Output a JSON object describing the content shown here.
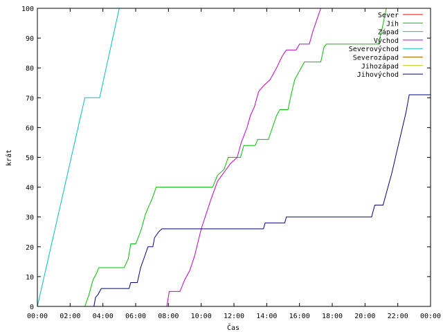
{
  "chart_data": {
    "type": "line",
    "title": "",
    "xlabel": "Čas",
    "ylabel": "krát",
    "xlim": [
      0,
      24
    ],
    "ylim": [
      0,
      100
    ],
    "x_ticks": [
      {
        "v": 0,
        "label": "00:00"
      },
      {
        "v": 2,
        "label": "02:00"
      },
      {
        "v": 4,
        "label": "04:00"
      },
      {
        "v": 6,
        "label": "06:00"
      },
      {
        "v": 8,
        "label": "08:00"
      },
      {
        "v": 10,
        "label": "10:00"
      },
      {
        "v": 12,
        "label": "12:00"
      },
      {
        "v": 14,
        "label": "14:00"
      },
      {
        "v": 16,
        "label": "16:00"
      },
      {
        "v": 18,
        "label": "18:00"
      },
      {
        "v": 20,
        "label": "20:00"
      },
      {
        "v": 22,
        "label": "22:00"
      },
      {
        "v": 24,
        "label": "00:00"
      }
    ],
    "y_ticks": [
      {
        "v": 0,
        "label": "0"
      },
      {
        "v": 10,
        "label": "10"
      },
      {
        "v": 20,
        "label": "20"
      },
      {
        "v": 30,
        "label": "30"
      },
      {
        "v": 40,
        "label": "40"
      },
      {
        "v": 50,
        "label": "50"
      },
      {
        "v": 60,
        "label": "60"
      },
      {
        "v": 70,
        "label": "70"
      },
      {
        "v": 80,
        "label": "80"
      },
      {
        "v": 90,
        "label": "90"
      },
      {
        "v": 100,
        "label": "100"
      }
    ],
    "grid": false,
    "legend_position": "top-right",
    "series": [
      {
        "name": "Sever",
        "color": "#ff0000",
        "points": []
      },
      {
        "name": "Jih",
        "color": "#00c000",
        "points": [
          [
            2.9,
            0
          ],
          [
            3.15,
            4
          ],
          [
            3.4,
            9
          ],
          [
            3.6,
            11
          ],
          [
            3.75,
            13
          ],
          [
            5.3,
            13
          ],
          [
            5.55,
            16
          ],
          [
            5.7,
            21
          ],
          [
            6.0,
            21
          ],
          [
            6.15,
            23
          ],
          [
            6.35,
            26
          ],
          [
            6.6,
            31
          ],
          [
            6.75,
            33
          ],
          [
            7.0,
            36
          ],
          [
            7.25,
            40
          ],
          [
            10.7,
            40
          ],
          [
            11.0,
            44
          ],
          [
            11.4,
            46
          ],
          [
            11.65,
            50
          ],
          [
            12.4,
            50
          ],
          [
            12.6,
            54
          ],
          [
            13.3,
            54
          ],
          [
            13.45,
            56
          ],
          [
            14.1,
            56
          ],
          [
            14.35,
            60
          ],
          [
            14.6,
            64
          ],
          [
            14.8,
            66
          ],
          [
            15.3,
            66
          ],
          [
            15.45,
            70
          ],
          [
            15.7,
            76
          ],
          [
            16.0,
            79
          ],
          [
            16.3,
            82
          ],
          [
            17.3,
            82
          ],
          [
            17.5,
            87
          ],
          [
            17.65,
            88
          ],
          [
            20.8,
            88
          ],
          [
            21.0,
            92
          ],
          [
            21.3,
            100
          ]
        ]
      },
      {
        "name": "Západ",
        "color": "#00c0c0",
        "points": [
          [
            0,
            0
          ],
          [
            2.9,
            70
          ],
          [
            3.8,
            70
          ],
          [
            5.0,
            100
          ]
        ]
      },
      {
        "name": "Východ",
        "color": "#c000c0",
        "points": [
          [
            7.9,
            0
          ],
          [
            8.05,
            5
          ],
          [
            8.7,
            5
          ],
          [
            9.0,
            9
          ],
          [
            9.3,
            12
          ],
          [
            9.6,
            17
          ],
          [
            10.0,
            26
          ],
          [
            10.6,
            36
          ],
          [
            11.0,
            42
          ],
          [
            11.4,
            45
          ],
          [
            11.8,
            48
          ],
          [
            12.2,
            50
          ],
          [
            12.45,
            55
          ],
          [
            12.8,
            60
          ],
          [
            13.0,
            64
          ],
          [
            13.25,
            67
          ],
          [
            13.5,
            72
          ],
          [
            13.8,
            74
          ],
          [
            14.2,
            76
          ],
          [
            14.6,
            80
          ],
          [
            14.95,
            84
          ],
          [
            15.2,
            86
          ],
          [
            15.8,
            86
          ],
          [
            16.0,
            88
          ],
          [
            16.6,
            88
          ],
          [
            16.8,
            92
          ],
          [
            17.05,
            96
          ],
          [
            17.3,
            100
          ]
        ]
      },
      {
        "name": "Severovýchod",
        "color": "#00c0c0",
        "points": []
      },
      {
        "name": "Severozápad",
        "color": "#c06000",
        "points": []
      },
      {
        "name": "Jihozápad",
        "color": "#c0c000",
        "points": []
      },
      {
        "name": "Jihovýchod",
        "color": "#000080",
        "points": [
          [
            3.45,
            0
          ],
          [
            3.55,
            3
          ],
          [
            3.7,
            4
          ],
          [
            3.9,
            6
          ],
          [
            5.6,
            6
          ],
          [
            5.7,
            8
          ],
          [
            6.1,
            8
          ],
          [
            6.3,
            13
          ],
          [
            6.5,
            16
          ],
          [
            6.75,
            20
          ],
          [
            7.05,
            20
          ],
          [
            7.15,
            23
          ],
          [
            7.4,
            25
          ],
          [
            7.6,
            26
          ],
          [
            13.8,
            26
          ],
          [
            13.9,
            28
          ],
          [
            15.1,
            28
          ],
          [
            15.2,
            30
          ],
          [
            20.4,
            30
          ],
          [
            20.6,
            34
          ],
          [
            21.1,
            34
          ],
          [
            21.3,
            38
          ],
          [
            21.65,
            45
          ],
          [
            21.9,
            51
          ],
          [
            22.2,
            58
          ],
          [
            22.5,
            65
          ],
          [
            22.7,
            71
          ],
          [
            24.0,
            71
          ]
        ]
      }
    ]
  }
}
